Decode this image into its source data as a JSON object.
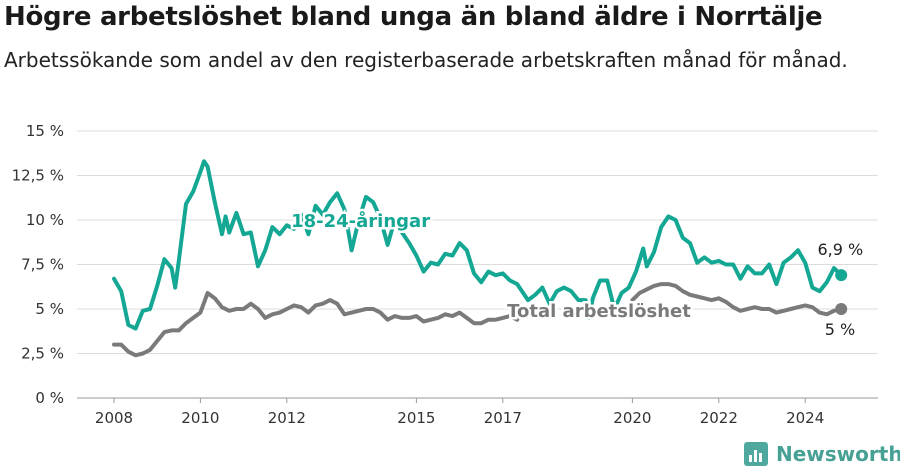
{
  "title": "Högre arbetslöshet bland unga än bland äldre i Norrtälje",
  "subtitle": "Arbetssökande som andel av den registerbaserade arbetskraften månad för månad.",
  "brand": {
    "name": "Newsworthy",
    "icon": "newsworthy-logo-icon"
  },
  "chart_data": {
    "type": "line",
    "ylim": [
      0,
      15
    ],
    "y_ticks": [
      0,
      2.5,
      5,
      7.5,
      10,
      12.5,
      15
    ],
    "y_tick_labels": [
      "0 %",
      "2,5 %",
      "5 %",
      "7,5 %",
      "10 %",
      "12,5 %",
      "15 %"
    ],
    "x_ticks": [
      2008,
      2010,
      2012,
      2015,
      2017,
      2020,
      2022,
      2024
    ],
    "x_tick_labels": [
      "2008",
      "2010",
      "2012",
      "2015",
      "2017",
      "2020",
      "2022",
      "2024"
    ],
    "grid": true,
    "colors": {
      "young": "#14a794",
      "total": "#7a7a7a",
      "grid": "#dcdcdc"
    },
    "series": [
      {
        "name": "18-24-åringar",
        "end_label": "6,9 %",
        "points": [
          [
            "2008-01",
            6.7
          ],
          [
            "2008-03",
            6.0
          ],
          [
            "2008-05",
            4.1
          ],
          [
            "2008-07",
            3.9
          ],
          [
            "2008-09",
            4.9
          ],
          [
            "2008-11",
            5.0
          ],
          [
            "2009-01",
            6.3
          ],
          [
            "2009-03",
            7.8
          ],
          [
            "2009-05",
            7.3
          ],
          [
            "2009-06",
            6.2
          ],
          [
            "2009-07",
            7.7
          ],
          [
            "2009-09",
            10.9
          ],
          [
            "2009-11",
            11.6
          ],
          [
            "2010-01",
            12.7
          ],
          [
            "2010-02",
            13.3
          ],
          [
            "2010-03",
            13.0
          ],
          [
            "2010-05",
            11.0
          ],
          [
            "2010-07",
            9.2
          ],
          [
            "2010-08",
            10.2
          ],
          [
            "2010-09",
            9.3
          ],
          [
            "2010-11",
            10.4
          ],
          [
            "2011-01",
            9.2
          ],
          [
            "2011-03",
            9.3
          ],
          [
            "2011-05",
            7.4
          ],
          [
            "2011-07",
            8.3
          ],
          [
            "2011-09",
            9.6
          ],
          [
            "2011-11",
            9.2
          ],
          [
            "2012-01",
            9.7
          ],
          [
            "2012-03",
            9.5
          ],
          [
            "2012-05",
            10.3
          ],
          [
            "2012-07",
            9.2
          ],
          [
            "2012-09",
            10.8
          ],
          [
            "2012-11",
            10.3
          ],
          [
            "2013-01",
            11.0
          ],
          [
            "2013-03",
            11.5
          ],
          [
            "2013-05",
            10.6
          ],
          [
            "2013-07",
            8.3
          ],
          [
            "2013-09",
            10.0
          ],
          [
            "2013-11",
            11.3
          ],
          [
            "2014-01",
            11.0
          ],
          [
            "2014-03",
            10.1
          ],
          [
            "2014-05",
            8.6
          ],
          [
            "2014-07",
            10.0
          ],
          [
            "2014-09",
            9.3
          ],
          [
            "2014-11",
            8.7
          ],
          [
            "2015-01",
            8.0
          ],
          [
            "2015-03",
            7.1
          ],
          [
            "2015-05",
            7.6
          ],
          [
            "2015-07",
            7.5
          ],
          [
            "2015-09",
            8.1
          ],
          [
            "2015-11",
            8.0
          ],
          [
            "2016-01",
            8.7
          ],
          [
            "2016-03",
            8.3
          ],
          [
            "2016-05",
            7.0
          ],
          [
            "2016-07",
            6.5
          ],
          [
            "2016-09",
            7.1
          ],
          [
            "2016-11",
            6.9
          ],
          [
            "2017-01",
            7.0
          ],
          [
            "2017-03",
            6.6
          ],
          [
            "2017-05",
            6.4
          ],
          [
            "2017-08",
            5.5
          ],
          [
            "2017-10",
            5.8
          ],
          [
            "2017-12",
            6.2
          ],
          [
            "2018-02",
            5.3
          ],
          [
            "2018-04",
            6.0
          ],
          [
            "2018-06",
            6.2
          ],
          [
            "2018-08",
            6.0
          ],
          [
            "2018-10",
            5.5
          ],
          [
            "2018-12",
            5.5
          ],
          [
            "2019-01",
            4.5
          ],
          [
            "2019-02",
            5.6
          ],
          [
            "2019-04",
            6.6
          ],
          [
            "2019-06",
            6.6
          ],
          [
            "2019-08",
            5.0
          ],
          [
            "2019-10",
            5.9
          ],
          [
            "2019-12",
            6.2
          ],
          [
            "2020-02",
            7.1
          ],
          [
            "2020-04",
            8.4
          ],
          [
            "2020-05",
            7.4
          ],
          [
            "2020-07",
            8.2
          ],
          [
            "2020-09",
            9.6
          ],
          [
            "2020-11",
            10.2
          ],
          [
            "2021-01",
            10.0
          ],
          [
            "2021-03",
            9.0
          ],
          [
            "2021-05",
            8.7
          ],
          [
            "2021-07",
            7.6
          ],
          [
            "2021-09",
            7.9
          ],
          [
            "2021-11",
            7.6
          ],
          [
            "2022-01",
            7.7
          ],
          [
            "2022-03",
            7.5
          ],
          [
            "2022-05",
            7.5
          ],
          [
            "2022-07",
            6.7
          ],
          [
            "2022-09",
            7.4
          ],
          [
            "2022-11",
            7.0
          ],
          [
            "2023-01",
            7.0
          ],
          [
            "2023-03",
            7.5
          ],
          [
            "2023-05",
            6.4
          ],
          [
            "2023-07",
            7.6
          ],
          [
            "2023-09",
            7.9
          ],
          [
            "2023-11",
            8.3
          ],
          [
            "2024-01",
            7.6
          ],
          [
            "2024-03",
            6.2
          ],
          [
            "2024-05",
            6.0
          ],
          [
            "2024-07",
            6.5
          ],
          [
            "2024-09",
            7.3
          ],
          [
            "2024-11",
            6.9
          ]
        ]
      },
      {
        "name": "Total arbetslöshet",
        "end_label": "5 %",
        "points": [
          [
            "2008-01",
            3.0
          ],
          [
            "2008-03",
            3.0
          ],
          [
            "2008-05",
            2.6
          ],
          [
            "2008-07",
            2.4
          ],
          [
            "2008-09",
            2.5
          ],
          [
            "2008-11",
            2.7
          ],
          [
            "2009-01",
            3.2
          ],
          [
            "2009-03",
            3.7
          ],
          [
            "2009-05",
            3.8
          ],
          [
            "2009-07",
            3.8
          ],
          [
            "2009-09",
            4.2
          ],
          [
            "2009-11",
            4.5
          ],
          [
            "2010-01",
            4.8
          ],
          [
            "2010-03",
            5.9
          ],
          [
            "2010-05",
            5.6
          ],
          [
            "2010-07",
            5.1
          ],
          [
            "2010-09",
            4.9
          ],
          [
            "2010-11",
            5.0
          ],
          [
            "2011-01",
            5.0
          ],
          [
            "2011-03",
            5.3
          ],
          [
            "2011-05",
            5.0
          ],
          [
            "2011-07",
            4.5
          ],
          [
            "2011-09",
            4.7
          ],
          [
            "2011-11",
            4.8
          ],
          [
            "2012-01",
            5.0
          ],
          [
            "2012-03",
            5.2
          ],
          [
            "2012-05",
            5.1
          ],
          [
            "2012-07",
            4.8
          ],
          [
            "2012-09",
            5.2
          ],
          [
            "2012-11",
            5.3
          ],
          [
            "2013-01",
            5.5
          ],
          [
            "2013-03",
            5.3
          ],
          [
            "2013-05",
            4.7
          ],
          [
            "2013-07",
            4.8
          ],
          [
            "2013-09",
            4.9
          ],
          [
            "2013-11",
            5.0
          ],
          [
            "2014-01",
            5.0
          ],
          [
            "2014-03",
            4.8
          ],
          [
            "2014-05",
            4.4
          ],
          [
            "2014-07",
            4.6
          ],
          [
            "2014-09",
            4.5
          ],
          [
            "2014-11",
            4.5
          ],
          [
            "2015-01",
            4.6
          ],
          [
            "2015-03",
            4.3
          ],
          [
            "2015-05",
            4.4
          ],
          [
            "2015-07",
            4.5
          ],
          [
            "2015-09",
            4.7
          ],
          [
            "2015-11",
            4.6
          ],
          [
            "2016-01",
            4.8
          ],
          [
            "2016-03",
            4.5
          ],
          [
            "2016-05",
            4.2
          ],
          [
            "2016-07",
            4.2
          ],
          [
            "2016-09",
            4.4
          ],
          [
            "2016-11",
            4.4
          ],
          [
            "2017-01",
            4.5
          ],
          [
            "2017-03",
            4.6
          ],
          [
            "2017-05",
            4.4
          ],
          [
            "2020-01",
            5.5
          ],
          [
            "2020-03",
            5.9
          ],
          [
            "2020-05",
            6.1
          ],
          [
            "2020-07",
            6.3
          ],
          [
            "2020-09",
            6.4
          ],
          [
            "2020-11",
            6.4
          ],
          [
            "2021-01",
            6.3
          ],
          [
            "2021-03",
            6.0
          ],
          [
            "2021-05",
            5.8
          ],
          [
            "2021-07",
            5.7
          ],
          [
            "2021-09",
            5.6
          ],
          [
            "2021-11",
            5.5
          ],
          [
            "2022-01",
            5.6
          ],
          [
            "2022-03",
            5.4
          ],
          [
            "2022-05",
            5.1
          ],
          [
            "2022-07",
            4.9
          ],
          [
            "2022-09",
            5.0
          ],
          [
            "2022-11",
            5.1
          ],
          [
            "2023-01",
            5.0
          ],
          [
            "2023-03",
            5.0
          ],
          [
            "2023-05",
            4.8
          ],
          [
            "2023-07",
            4.9
          ],
          [
            "2023-09",
            5.0
          ],
          [
            "2023-11",
            5.1
          ],
          [
            "2024-01",
            5.2
          ],
          [
            "2024-03",
            5.1
          ],
          [
            "2024-05",
            4.8
          ],
          [
            "2024-07",
            4.7
          ],
          [
            "2024-09",
            4.9
          ],
          [
            "2024-11",
            5.0
          ]
        ]
      }
    ]
  }
}
